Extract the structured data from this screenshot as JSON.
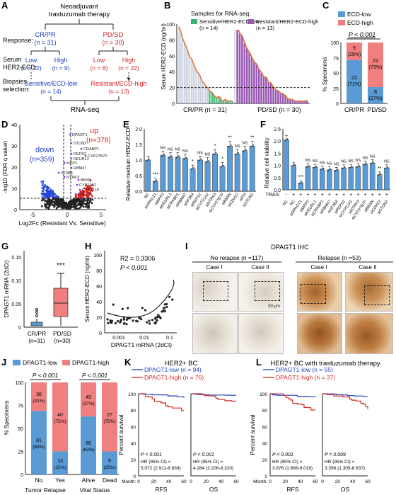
{
  "panels": {
    "A": {
      "letter": "A",
      "title_l1": "Neoadjuvant",
      "title_l2": "trastuzumab therapy",
      "response_label": "Response:",
      "crpr": "CR/PR",
      "crpr_n": "(n = 31)",
      "pdsd": "PD/SD",
      "pdsd_n": "(n = 30)",
      "serum_l1": "Serum",
      "serum_l2": "HER2-ECD:",
      "low1": "Low",
      "low1_n": "(n = 22)",
      "high1": "High",
      "high1_n": "(n = 9)",
      "low2": "Low",
      "low2_n": "(n = 8)",
      "high2": "High",
      "high2_n": "(n = 22)",
      "biopsy_l1": "Biopsies",
      "biopsy_l2": "selection:",
      "sel1": "Sensitive/ECD-low",
      "sel1_n": "(n = 14)",
      "sel2": "Resistant/ECD-high",
      "sel2_n": "(n = 13)",
      "rnaseq": "RNA-seq"
    },
    "B": {
      "letter": "B",
      "legend_title": "Samples for RNA-seq:",
      "leg1": "Sensitive/HER2-ECD-low",
      "leg1_n": "(n = 14)",
      "leg2": "Resistant/HER2-ECD-high",
      "leg2_n": "(n = 13)",
      "ylabel": "Serum HER2-ECD (ng/ml)",
      "yticks": [
        "0",
        "20",
        "40",
        "60",
        "80",
        "100"
      ],
      "xl1": "CR/PR (n = 31)",
      "xl2": "PD/SD (n = 30)",
      "threshold": 20
    },
    "C": {
      "letter": "C",
      "leg1": "ECD-low",
      "leg2": "ECD-high",
      "pval": "P < 0.001",
      "ylabel": "% Specimens",
      "yticks": [
        "0",
        "25",
        "50",
        "75",
        "100"
      ],
      "x1": "CR/PR",
      "x2": "PD/SD",
      "b1_hi": "9",
      "b1_hi_p": "(29%)",
      "b1_lo": "22",
      "b1_lo_p": "(71%)",
      "b2_hi": "22",
      "b2_hi_p": "(73%)",
      "b2_lo": "8",
      "b2_lo_p": "(27%)"
    },
    "D": {
      "letter": "D",
      "down": "down",
      "down_n": "(n=359)",
      "up": "up",
      "up_n": "(n=378)",
      "ylabel": "-log10 (FDR q value)",
      "xlabel": "Log2Fc (Resistant Vs. Sensitive)",
      "xticks": [
        "-5",
        "0",
        "5"
      ],
      "yticks": [
        "0",
        "10",
        "20",
        "30",
        "40"
      ],
      "genes": [
        "DPAGT1",
        "STON2",
        "CRABP1",
        "REPS2",
        "NEURL1",
        "MPP2",
        "RBM47",
        "SF3B4",
        "CYP27B7P",
        "NTRK3",
        "BBSN",
        "CYP21A2",
        "CYP2T1P",
        "CDH22",
        "PI3"
      ]
    },
    "E": {
      "letter": "E",
      "ylabel": "Relative medium HER2-ECD",
      "yticks": [
        "0.0",
        "0.5",
        "1.0",
        "1.5",
        "2.0"
      ],
      "labels": [
        "NC",
        "siDPAGT1",
        "siMPP2",
        "siNEURL1",
        "siCRABP1",
        "siRBM47",
        "siSF3B4",
        "siREPS2",
        "siCYP21A2",
        "siNTRK3",
        "siCYP27B7P",
        "siBBSN",
        "siCDH22",
        "siPI3",
        "siSTON2"
      ],
      "sig": [
        "",
        "***",
        "NS",
        "NS",
        "NS",
        "NS",
        "*",
        "NS",
        "NS",
        "*",
        "*",
        "**",
        "NS",
        "NS",
        "**"
      ]
    },
    "F": {
      "letter": "F",
      "ylabel": "Relative cell viability",
      "yticks": [
        "0.0",
        "0.5",
        "1.0",
        "1.5",
        "2.0",
        "2.5"
      ],
      "tras_label": "TRAS:",
      "tras": [
        "-",
        "+",
        "+",
        "+",
        "+",
        "+",
        "+",
        "+",
        "+",
        "+",
        "+",
        "+",
        "+",
        "+",
        "+"
      ],
      "labels": [
        "NC",
        "NC",
        "siDPAGT1",
        "siMPP2",
        "siNEURL1",
        "siCRABP1",
        "siRBM47",
        "siSF3B4",
        "siREPS2",
        "siCYP21A2",
        "siNTRK3",
        "siCYP27B7P",
        "siBBSN",
        "siCDH22",
        "siSTON2"
      ],
      "sig": [
        "",
        "",
        "***",
        "NS",
        "NS",
        "NS",
        "NS",
        "NS",
        "NS",
        "NS",
        "NS",
        "NS",
        "NS",
        "**",
        "NS"
      ]
    },
    "G": {
      "letter": "G",
      "ylabel": "DPAGT1 mRNA (2dCt)",
      "sig": "***",
      "x1": "CR/PR",
      "x1_n": "(n=31)",
      "x2": "PD/SD",
      "x2_n": "(n=30)",
      "yticks": [
        "0",
        "0.05",
        "0.10",
        "0.15"
      ]
    },
    "H": {
      "letter": "H",
      "r2": "R2 = 0.3306",
      "p": "P < 0.001",
      "ylabel": "Serum HER2-ECD (ng/ml)",
      "xlabel": "DPAGT1 mRNA (2dCt)",
      "yticks": [
        "0",
        "20",
        "40",
        "60",
        "80",
        "100"
      ],
      "xticks": [
        "0.001",
        "0.01",
        "0.1"
      ]
    },
    "I": {
      "letter": "I",
      "title": "DPAGT1 IHC",
      "no_relapse": "No relapse (n =117)",
      "relapse": "Relapse (n =53)",
      "case1": "Case I",
      "case2": "Case II",
      "case3": "Case I",
      "case4": "Case II",
      "scale": "50 μm"
    },
    "J": {
      "letter": "J",
      "leg1": "DPAGT1-low",
      "leg2": "DPAGT1-high",
      "p1": "P < 0.001",
      "p2": "P < 0.001",
      "ylabel": "% Specimens",
      "yticks": [
        "0",
        "25",
        "50",
        "75",
        "100"
      ],
      "x": [
        "No",
        "Yes",
        "Alive",
        "Dead"
      ],
      "g1": "Tumor Relapse",
      "g2": "Vital Status",
      "bars": [
        {
          "hi": "36",
          "hi_p": "(31%)",
          "lo": "81",
          "lo_p": "(69%)",
          "hi_frac": 0.31
        },
        {
          "hi": "40",
          "hi_p": "(75%)",
          "lo": "13",
          "lo_p": "(25%)",
          "hi_frac": 0.75
        },
        {
          "hi": "49",
          "hi_p": "(37%)",
          "lo": "85",
          "lo_p": "(63%)",
          "hi_frac": 0.37
        },
        {
          "hi": "27",
          "hi_p": "(75%)",
          "lo": "9",
          "lo_p": "(25%)",
          "hi_frac": 0.75
        }
      ]
    },
    "K": {
      "letter": "K",
      "title": "HER2+ BC",
      "leg1": "DPAGT1-low (n = 94)",
      "leg2": "DPAGT1-high (n = 76)",
      "ylabel": "Percent survival",
      "month": "Month:",
      "yticks": [
        "0",
        "20",
        "40",
        "60",
        "80",
        "100"
      ],
      "xticks": [
        "0",
        "20",
        "40",
        "60"
      ],
      "p1": "P < 0.001",
      "hr1": "HR (95% CI) =",
      "hr1v": "5.072 (2.911-8.839)",
      "p2": "P < 0.001",
      "hr2": "HR (95% CI) =",
      "hr2v": "4.284 (2.206-8.320)",
      "x1": "RFS",
      "x2": "OS"
    },
    "L": {
      "letter": "L",
      "title": "HER2+ BC with trastuzumab therapy",
      "leg1": "DPAGT1-low (n = 55)",
      "leg2": "DPAGT1-high (n = 37)",
      "ylabel": "Percent survival",
      "month": "Month:",
      "yticks": [
        "0",
        "20",
        "40",
        "60",
        "80",
        "100"
      ],
      "xticks": [
        "0",
        "20",
        "40",
        "60"
      ],
      "p1": "P < 0.001",
      "hr1": "HR (95% CI) =",
      "hr1v": "3.876 (1.666-9.018)",
      "p2": "P = 0.009",
      "hr2": "HR (95% CI) =",
      "hr2v": "3.396 (1.305-8.837)",
      "x1": "RFS",
      "x2": "OS"
    }
  },
  "colors": {
    "blue": "#5b9bd5",
    "red": "#f08080",
    "orange": "#e07b39",
    "green": "#3cb371",
    "purple": "#9b59b6",
    "navy": "#1f3fbf",
    "crimson": "#d62828",
    "ihc_brown": "#a0622d"
  },
  "chart_data": [
    {
      "type": "bar",
      "panel": "E",
      "ylim": [
        0,
        2.0
      ],
      "categories": [
        "NC",
        "siDPAGT1",
        "siMPP2",
        "siNEURL1",
        "siCRABP1",
        "siRBM47",
        "siSF3B4",
        "siREPS2",
        "siCYP21A2",
        "siNTRK3",
        "siCYP27B7P",
        "siBBSN",
        "siCDH22",
        "siPI3",
        "siSTON2"
      ],
      "values": [
        1.0,
        0.32,
        1.15,
        1.1,
        1.1,
        1.05,
        0.72,
        1.0,
        0.95,
        1.2,
        0.8,
        1.45,
        1.2,
        1.3,
        1.45
      ]
    },
    {
      "type": "bar",
      "panel": "F",
      "ylim": [
        0,
        2.5
      ],
      "categories": [
        "NC",
        "NC",
        "siDPAGT1",
        "siMPP2",
        "siNEURL1",
        "siCRABP1",
        "siRBM47",
        "siSF3B4",
        "siREPS2",
        "siCYP21A2",
        "siNTRK3",
        "siCYP27B7P",
        "siBBSN",
        "siCDH22",
        "siSTON2"
      ],
      "values": [
        2.05,
        1.0,
        0.28,
        0.95,
        0.92,
        0.85,
        0.82,
        0.8,
        0.9,
        0.92,
        0.95,
        1.05,
        1.1,
        0.62,
        0.9
      ]
    }
  ]
}
